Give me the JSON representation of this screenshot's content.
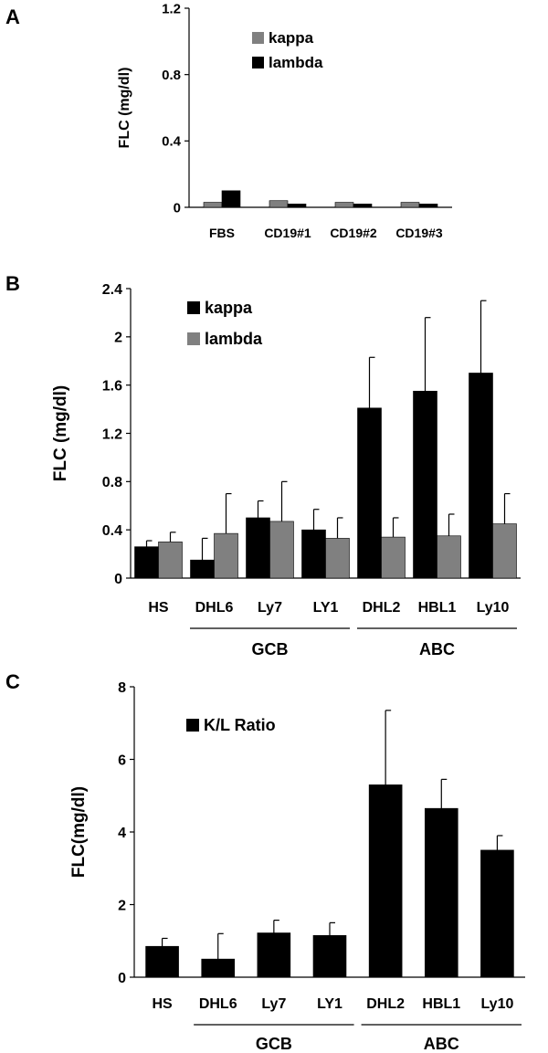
{
  "chart_data": [
    {
      "panel_label": "A",
      "type": "bar",
      "ylabel": "FLC (mg/dl)",
      "ylim": [
        0,
        1.2
      ],
      "yticks": [
        "0",
        "0.4",
        "0.8",
        "1.2"
      ],
      "categories": [
        "FBS",
        "CD19#1",
        "CD19#2",
        "CD19#3"
      ],
      "legend_placement": "top-center",
      "series": [
        {
          "name": "kappa",
          "color": "#808080",
          "values": [
            0.03,
            0.04,
            0.03,
            0.03
          ]
        },
        {
          "name": "lambda",
          "color": "#000000",
          "values": [
            0.1,
            0.02,
            0.02,
            0.02
          ]
        }
      ],
      "groups": []
    },
    {
      "panel_label": "B",
      "type": "bar",
      "ylabel": "FLC (mg/dl)",
      "ylim": [
        0,
        2.4
      ],
      "yticks": [
        "0",
        "0.4",
        "0.8",
        "1.2",
        "1.6",
        "2",
        "2.4"
      ],
      "categories": [
        "HS",
        "DHL6",
        "Ly7",
        "LY1",
        "DHL2",
        "HBL1",
        "Ly10"
      ],
      "legend_placement": "top-left",
      "series": [
        {
          "name": "kappa",
          "color": "#000000",
          "values": [
            0.26,
            0.15,
            0.5,
            0.4,
            1.41,
            1.55,
            1.7
          ],
          "errors": [
            0.05,
            0.18,
            0.14,
            0.17,
            0.42,
            0.61,
            0.6
          ]
        },
        {
          "name": "lambda",
          "color": "#808080",
          "values": [
            0.3,
            0.37,
            0.47,
            0.33,
            0.34,
            0.35,
            0.45
          ],
          "errors": [
            0.08,
            0.33,
            0.33,
            0.17,
            0.16,
            0.18,
            0.25
          ]
        }
      ],
      "groups": [
        {
          "label": "GCB",
          "from": 1,
          "to": 3
        },
        {
          "label": "ABC",
          "from": 4,
          "to": 6
        }
      ]
    },
    {
      "panel_label": "C",
      "type": "bar",
      "ylabel": "FLC(mg/dl)",
      "ylim": [
        0,
        8
      ],
      "yticks": [
        "0",
        "2",
        "4",
        "6",
        "8"
      ],
      "categories": [
        "HS",
        "DHL6",
        "Ly7",
        "LY1",
        "DHL2",
        "HBL1",
        "Ly10"
      ],
      "legend_placement": "top-left",
      "series": [
        {
          "name": "K/L Ratio",
          "color": "#000000",
          "values": [
            0.85,
            0.5,
            1.22,
            1.15,
            5.3,
            4.65,
            3.5
          ],
          "errors": [
            0.22,
            0.7,
            0.35,
            0.35,
            2.05,
            0.8,
            0.4
          ]
        }
      ],
      "groups": [
        {
          "label": "GCB",
          "from": 1,
          "to": 3
        },
        {
          "label": "ABC",
          "from": 4,
          "to": 6
        }
      ]
    }
  ]
}
